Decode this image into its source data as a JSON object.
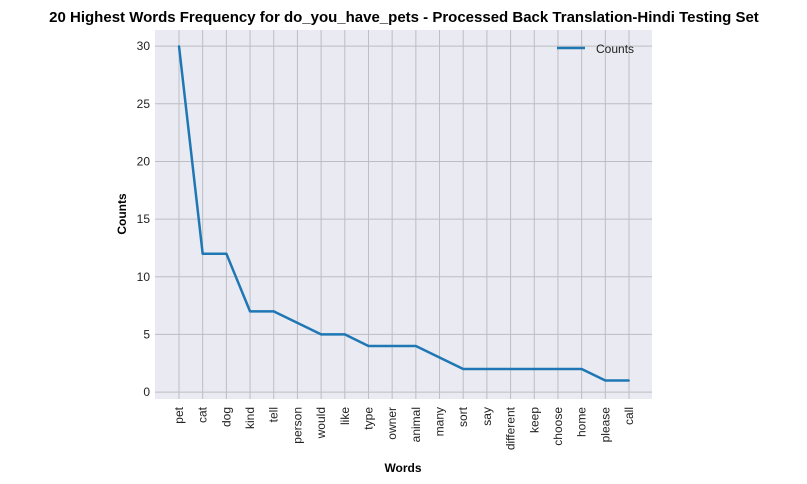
{
  "chart_data": {
    "type": "line",
    "title": "20 Highest Words Frequency for do_you_have_pets - Processed Back Translation-Hindi Testing Set",
    "xlabel": "Words",
    "ylabel": "Counts",
    "categories": [
      "pet",
      "cat",
      "dog",
      "kind",
      "tell",
      "person",
      "would",
      "like",
      "type",
      "owner",
      "animal",
      "many",
      "sort",
      "say",
      "different",
      "keep",
      "choose",
      "home",
      "please",
      "call"
    ],
    "series": [
      {
        "name": "Counts",
        "values": [
          30,
          12,
          12,
          7,
          7,
          6,
          5,
          5,
          4,
          4,
          4,
          3,
          2,
          2,
          2,
          2,
          2,
          2,
          1,
          1
        ],
        "color": "#1f77b4"
      }
    ],
    "ylim": [
      -0.6,
      31.4
    ],
    "yticks": [
      0,
      5,
      10,
      15,
      20,
      25,
      30
    ],
    "grid": true,
    "legend": "top-right",
    "background": "#eaeaf2",
    "grid_color": "#bdbdc4"
  }
}
